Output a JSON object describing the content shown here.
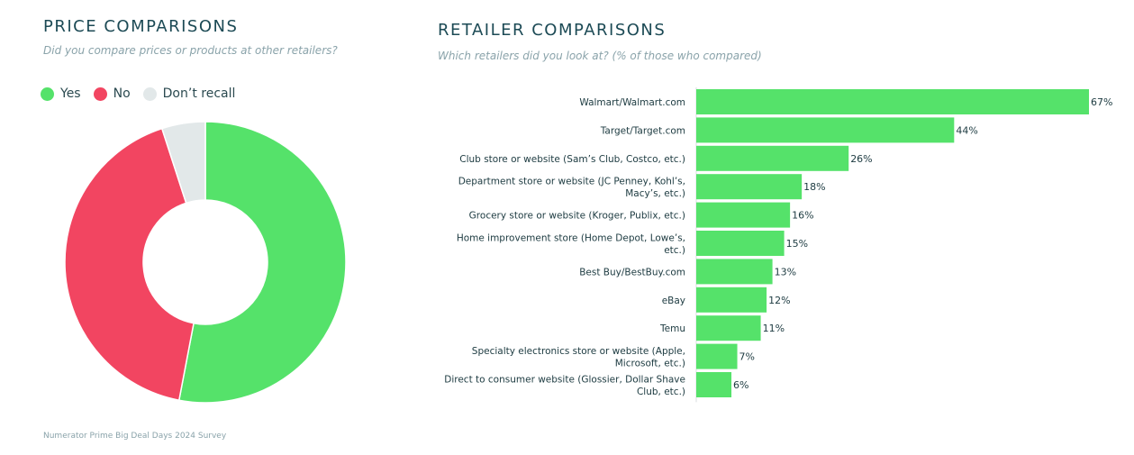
{
  "left_panel": {
    "title": "PRICE COMPARISONS",
    "subtitle": "Did you compare prices or products at other retailers?"
  },
  "right_panel": {
    "title": "RETAILER COMPARISONS",
    "subtitle": "Which retailers did you look at? (% of those who compared)"
  },
  "source": "Numerator Prime Big Deal Days 2024 Survey",
  "colors": {
    "yes": "#55e26a",
    "no": "#f24561",
    "dont_recall": "#e2e8e9",
    "bar": "#55e26a"
  },
  "chart_data": [
    {
      "type": "pie",
      "subtype": "donut",
      "legend_position": "top-left",
      "series": [
        {
          "name": "Yes",
          "value": 53
        },
        {
          "name": "No",
          "value": 42
        },
        {
          "name": "Don’t recall",
          "value": 5
        }
      ]
    },
    {
      "type": "bar",
      "orientation": "horizontal",
      "categories": [
        [
          "Walmart/Walmart.com"
        ],
        [
          "Target/Target.com"
        ],
        [
          "Club store or website (Sam’s Club, Costco, etc.)"
        ],
        [
          "Department store or website (JC Penney, Kohl’s,",
          "Macy’s, etc.)"
        ],
        [
          "Grocery store or website (Kroger, Publix, etc.)"
        ],
        [
          "Home improvement store (Home Depot, Lowe’s,",
          "etc.)"
        ],
        [
          "Best Buy/BestBuy.com"
        ],
        [
          "eBay"
        ],
        [
          "Temu"
        ],
        [
          "Specialty electronics store or website (Apple,",
          "Microsoft, etc.)"
        ],
        [
          "Direct to consumer website (Glossier, Dollar Shave",
          "Club, etc.)"
        ]
      ],
      "values": [
        67,
        44,
        26,
        18,
        16,
        15,
        13,
        12,
        11,
        7,
        6
      ],
      "value_labels": [
        "67%",
        "44%",
        "26%",
        "18%",
        "16%",
        "15%",
        "13%",
        "12%",
        "11%",
        "7%",
        "6%"
      ],
      "xlim": [
        0,
        67
      ],
      "grid": false
    }
  ]
}
